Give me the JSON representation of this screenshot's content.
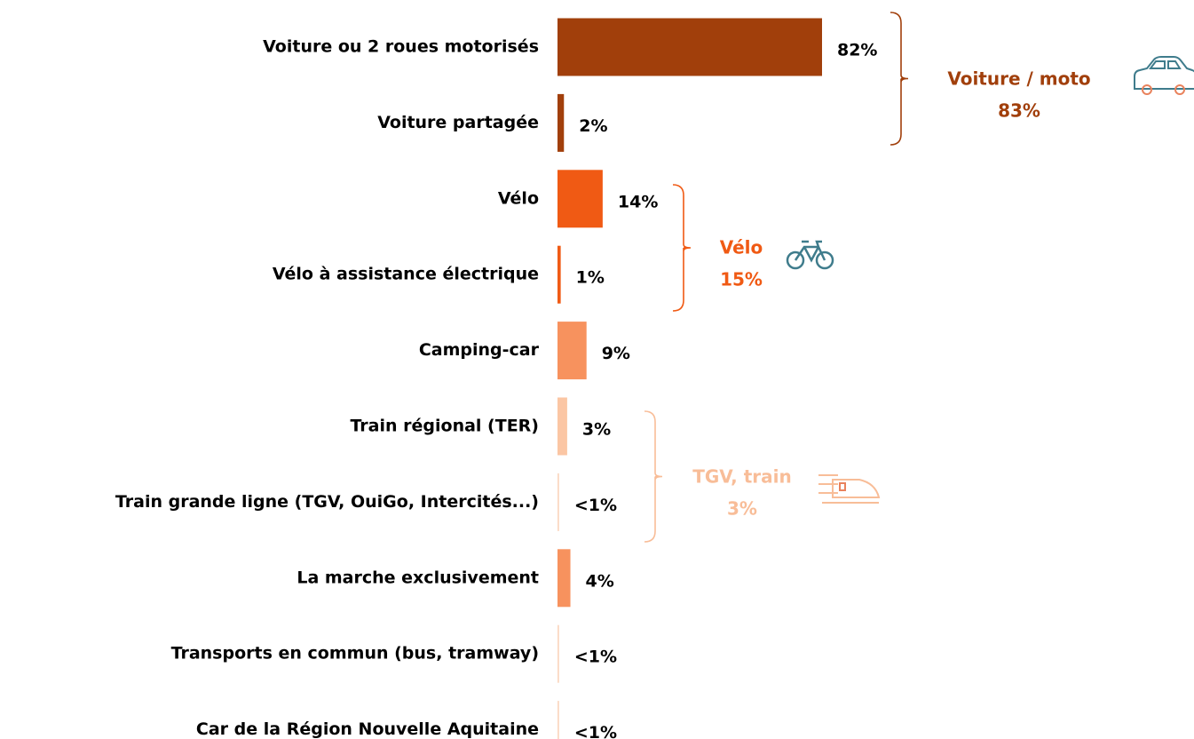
{
  "chart_data": {
    "type": "bar",
    "orientation": "horizontal",
    "categories": [
      "Voiture ou 2 roues motorisés",
      "Voiture partagée",
      "Vélo",
      "Vélo à assistance électrique",
      "Camping-car",
      "Train régional (TER)",
      "Train grande ligne (TGV, OuiGo, Intercités...)",
      "La marche exclusivement",
      "Transports en commun (bus, tramway)",
      "Car de la Région Nouvelle Aquitaine"
    ],
    "values": [
      82,
      2,
      14,
      1,
      9,
      3,
      0.5,
      4,
      0.5,
      0.5
    ],
    "value_labels": [
      "82%",
      "2%",
      "14%",
      "1%",
      "9%",
      "3%",
      "<1%",
      "4%",
      "<1%",
      "<1%"
    ],
    "colors": [
      "#a13f0b",
      "#a13f0b",
      "#f05a14",
      "#f05a14",
      "#f7925e",
      "#fbc6a4",
      "#fbd9c3",
      "#f7925e",
      "#fbd9c3",
      "#fbd9c3"
    ],
    "groups": [
      {
        "label": "Voiture / moto",
        "value": 83,
        "value_label": "83%",
        "color": "#a13f0b",
        "rows": [
          0,
          1
        ]
      },
      {
        "label": "Vélo",
        "value": 15,
        "value_label": "15%",
        "color": "#f05a14",
        "rows": [
          2,
          3
        ]
      },
      {
        "label": "TGV, train",
        "value": 3,
        "value_label": "3%",
        "color": "#f8bd98",
        "rows": [
          5,
          6
        ]
      }
    ]
  }
}
